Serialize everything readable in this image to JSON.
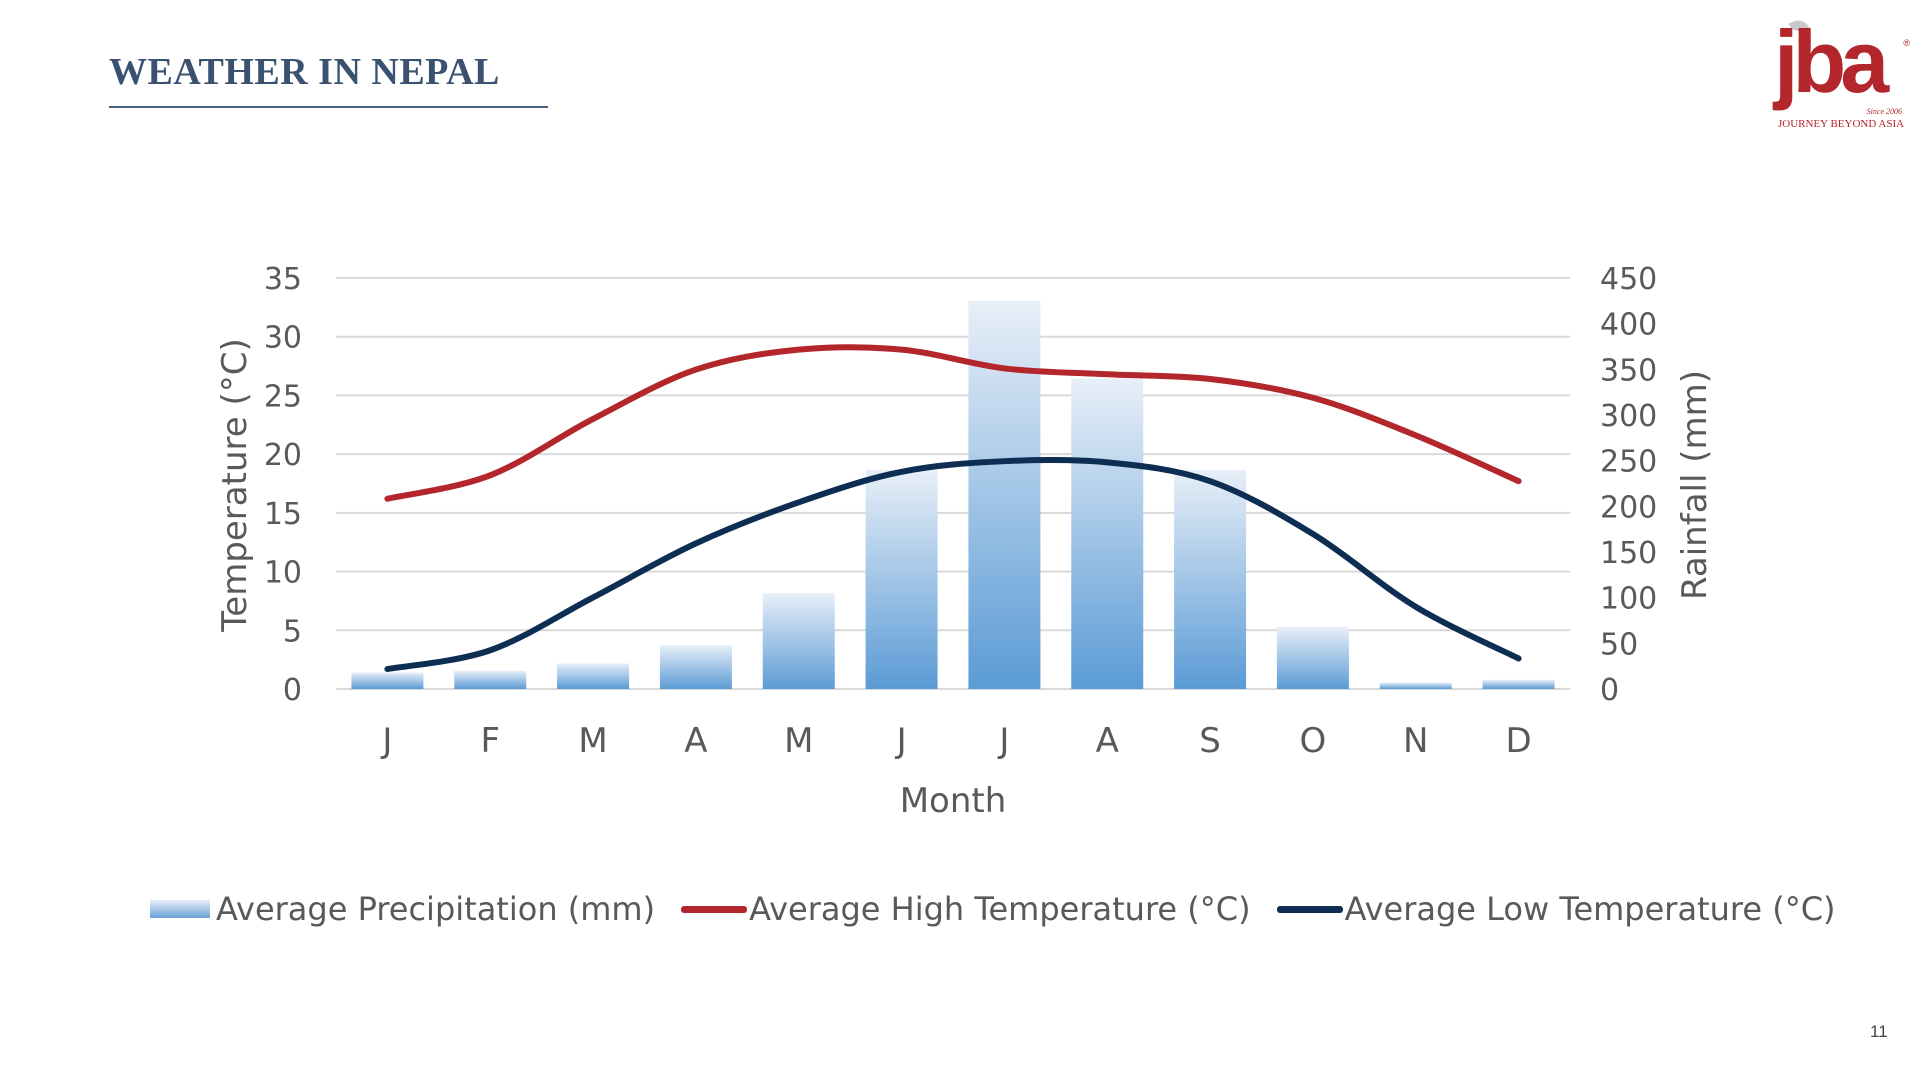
{
  "slide": {
    "title": "WEATHER IN NEPAL",
    "page_number": "11"
  },
  "logo": {
    "wordmark": "jba",
    "since": "Since 2006",
    "tagline": "JOURNEY BEYOND ASIA",
    "registered": "®"
  },
  "colors": {
    "title": "#3a5270",
    "high_temp": "#b3262b",
    "low_temp": "#0d2e52",
    "precip_top": "#e8eff8",
    "precip_bottom": "#5b9bd5",
    "grid": "#d9d9d9",
    "axis_text": "#595959"
  },
  "chart_data": {
    "type": "bar+line",
    "title": "",
    "xlabel": "Month",
    "ylabel_left": "Temperature (°C)",
    "ylabel_right": "Rainfall (mm)",
    "categories": [
      "J",
      "F",
      "M",
      "A",
      "M",
      "J",
      "J",
      "A",
      "S",
      "O",
      "N",
      "D"
    ],
    "ylim_left": [
      0,
      35
    ],
    "yticks_left": [
      "0",
      "5",
      "10",
      "15",
      "20",
      "25",
      "30",
      "35"
    ],
    "ylim_right": [
      0,
      450
    ],
    "yticks_right": [
      "0",
      "50",
      "100",
      "150",
      "200",
      "250",
      "300",
      "350",
      "400",
      "450"
    ],
    "grid": true,
    "legend_position": "bottom",
    "series": [
      {
        "name": "Average Precipitation (mm)",
        "kind": "bar",
        "axis": "right",
        "values": [
          18,
          20,
          28,
          48,
          105,
          240,
          425,
          340,
          240,
          68,
          7,
          10
        ]
      },
      {
        "name": "Average High Temperature (°C)",
        "kind": "line",
        "axis": "left",
        "values": [
          16.2,
          18.2,
          23.0,
          27.2,
          28.9,
          28.9,
          27.3,
          26.8,
          26.4,
          24.8,
          21.6,
          17.7
        ]
      },
      {
        "name": "Average Low Temperature (°C)",
        "kind": "line",
        "axis": "left",
        "values": [
          1.7,
          3.3,
          7.8,
          12.4,
          15.9,
          18.5,
          19.4,
          19.3,
          17.7,
          13.2,
          7.0,
          2.6
        ]
      }
    ]
  }
}
